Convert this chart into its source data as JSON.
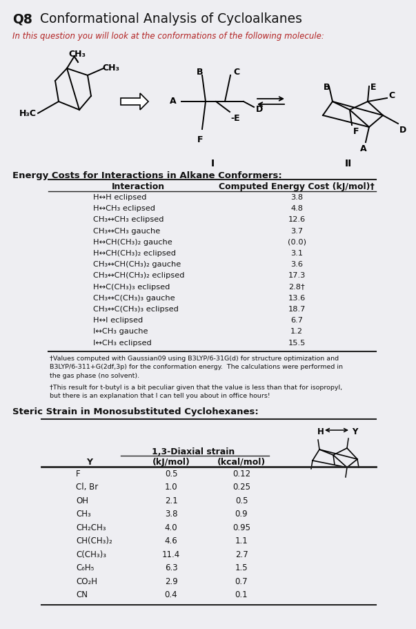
{
  "title_bold": "Q8",
  "title_rest": " Conformational Analysis of Cycloalkanes",
  "subtitle": "In this question you will look at the conformations of the following molecule:",
  "table1_title": "Energy Costs for Interactions in Alkane Conformers:",
  "table1_col1": "Interaction",
  "table1_col2": "Computed Energy Cost (kJ/mol)†",
  "table1_rows": [
    [
      "H↔H eclipsed",
      "3.8"
    ],
    [
      "H↔CH₃ eclipsed",
      "4.8"
    ],
    [
      "CH₃↔CH₃ eclipsed",
      "12.6"
    ],
    [
      "CH₃↔CH₃ gauche",
      "3.7"
    ],
    [
      "H↔CH(CH₃)₂ gauche",
      "(0.0)"
    ],
    [
      "H↔CH(CH₃)₂ eclipsed",
      "3.1"
    ],
    [
      "CH₃↔CH(CH₃)₂ gauche",
      "3.6"
    ],
    [
      "CH₃↔CH(CH₃)₂ eclipsed",
      "17.3"
    ],
    [
      "H↔C(CH₃)₃ eclipsed",
      "2.8†"
    ],
    [
      "CH₃↔C(CH₃)₃ gauche",
      "13.6"
    ],
    [
      "CH₃↔C(CH₃)₃ eclipsed",
      "18.7"
    ],
    [
      "H↔I eclipsed",
      "6.7"
    ],
    [
      "I↔CH₃ gauche",
      "1.2"
    ],
    [
      "I↔CH₃ eclipsed",
      "15.5"
    ]
  ],
  "footnote1": "†Values computed with Gaussian09 using B3LYP/6-31G(d) for structure optimization and\nB3LYP/6-311+G(2df,3p) for the conformation energy.  The calculations were performed in\nthe gas phase (no solvent).",
  "footnote2": "†This result for t-butyl is a bit peculiar given that the value is less than that for isopropyl,\nbut there is an explanation that I can tell you about in office hours!",
  "table2_title": "Steric Strain in Monosubstituted Cyclohexanes:",
  "table2_header_span": "1,3-Diaxial strain",
  "table2_col1": "Y",
  "table2_col2": "(kJ/mol)",
  "table2_col3": "(kcal/mol)",
  "table2_rows": [
    [
      "F",
      "0.5",
      "0.12"
    ],
    [
      "Cl, Br",
      "1.0",
      "0.25"
    ],
    [
      "OH",
      "2.1",
      "0.5"
    ],
    [
      "CH₃",
      "3.8",
      "0.9"
    ],
    [
      "CH₂CH₃",
      "4.0",
      "0.95"
    ],
    [
      "CH(CH₃)₂",
      "4.6",
      "1.1"
    ],
    [
      "C(CH₃)₃",
      "11.4",
      "2.7"
    ],
    [
      "C₆H₅",
      "6.3",
      "1.5"
    ],
    [
      "CO₂H",
      "2.9",
      "0.7"
    ],
    [
      "CN",
      "0.4",
      "0.1"
    ]
  ],
  "bg_color": "#eeeef2",
  "text_color": "#111111",
  "subtitle_color": "#b22222",
  "table_line_color": "#222222"
}
